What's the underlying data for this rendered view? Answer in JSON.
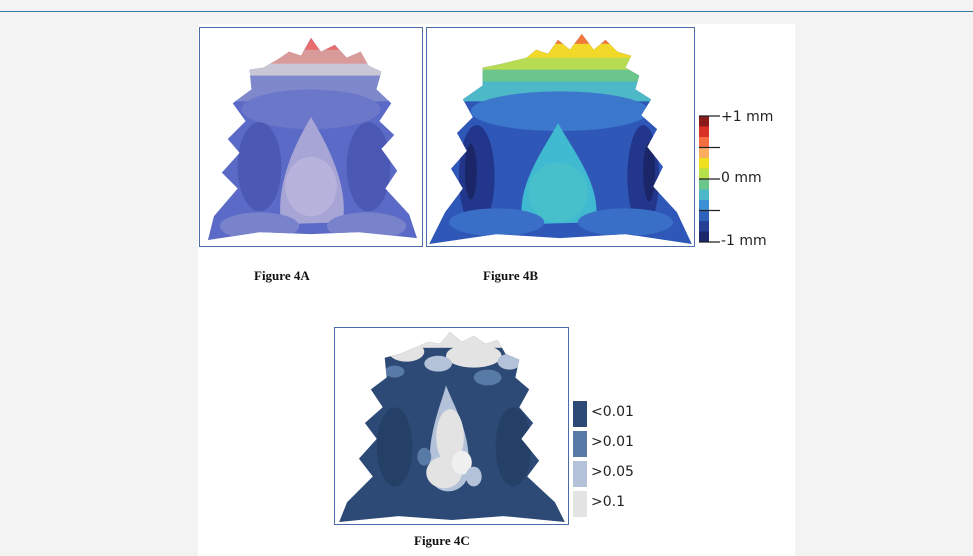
{
  "figures": {
    "a": {
      "caption": "Figure 4A"
    },
    "b": {
      "caption": "Figure 4B"
    },
    "c": {
      "caption": "Figure 4C"
    }
  },
  "colorbar": {
    "labels": [
      "+1 mm",
      "0 mm",
      "-1 mm"
    ],
    "colors": [
      "#8b1a1a",
      "#d73027",
      "#f46d43",
      "#fdae61",
      "#f2e020",
      "#b8e04a",
      "#6cc58a",
      "#4cb8c8",
      "#3d8fd6",
      "#2f63b8",
      "#253f94",
      "#1b2668"
    ]
  },
  "pvalue_legend": {
    "items": [
      {
        "label": "<0.01",
        "color": "#2c4a75"
      },
      {
        "label": ">0.01",
        "color": "#587aa6"
      },
      {
        "label": ">0.05",
        "color": "#b3c2d8"
      },
      {
        "label": ">0.1",
        "color": "#e3e3e3"
      }
    ]
  }
}
